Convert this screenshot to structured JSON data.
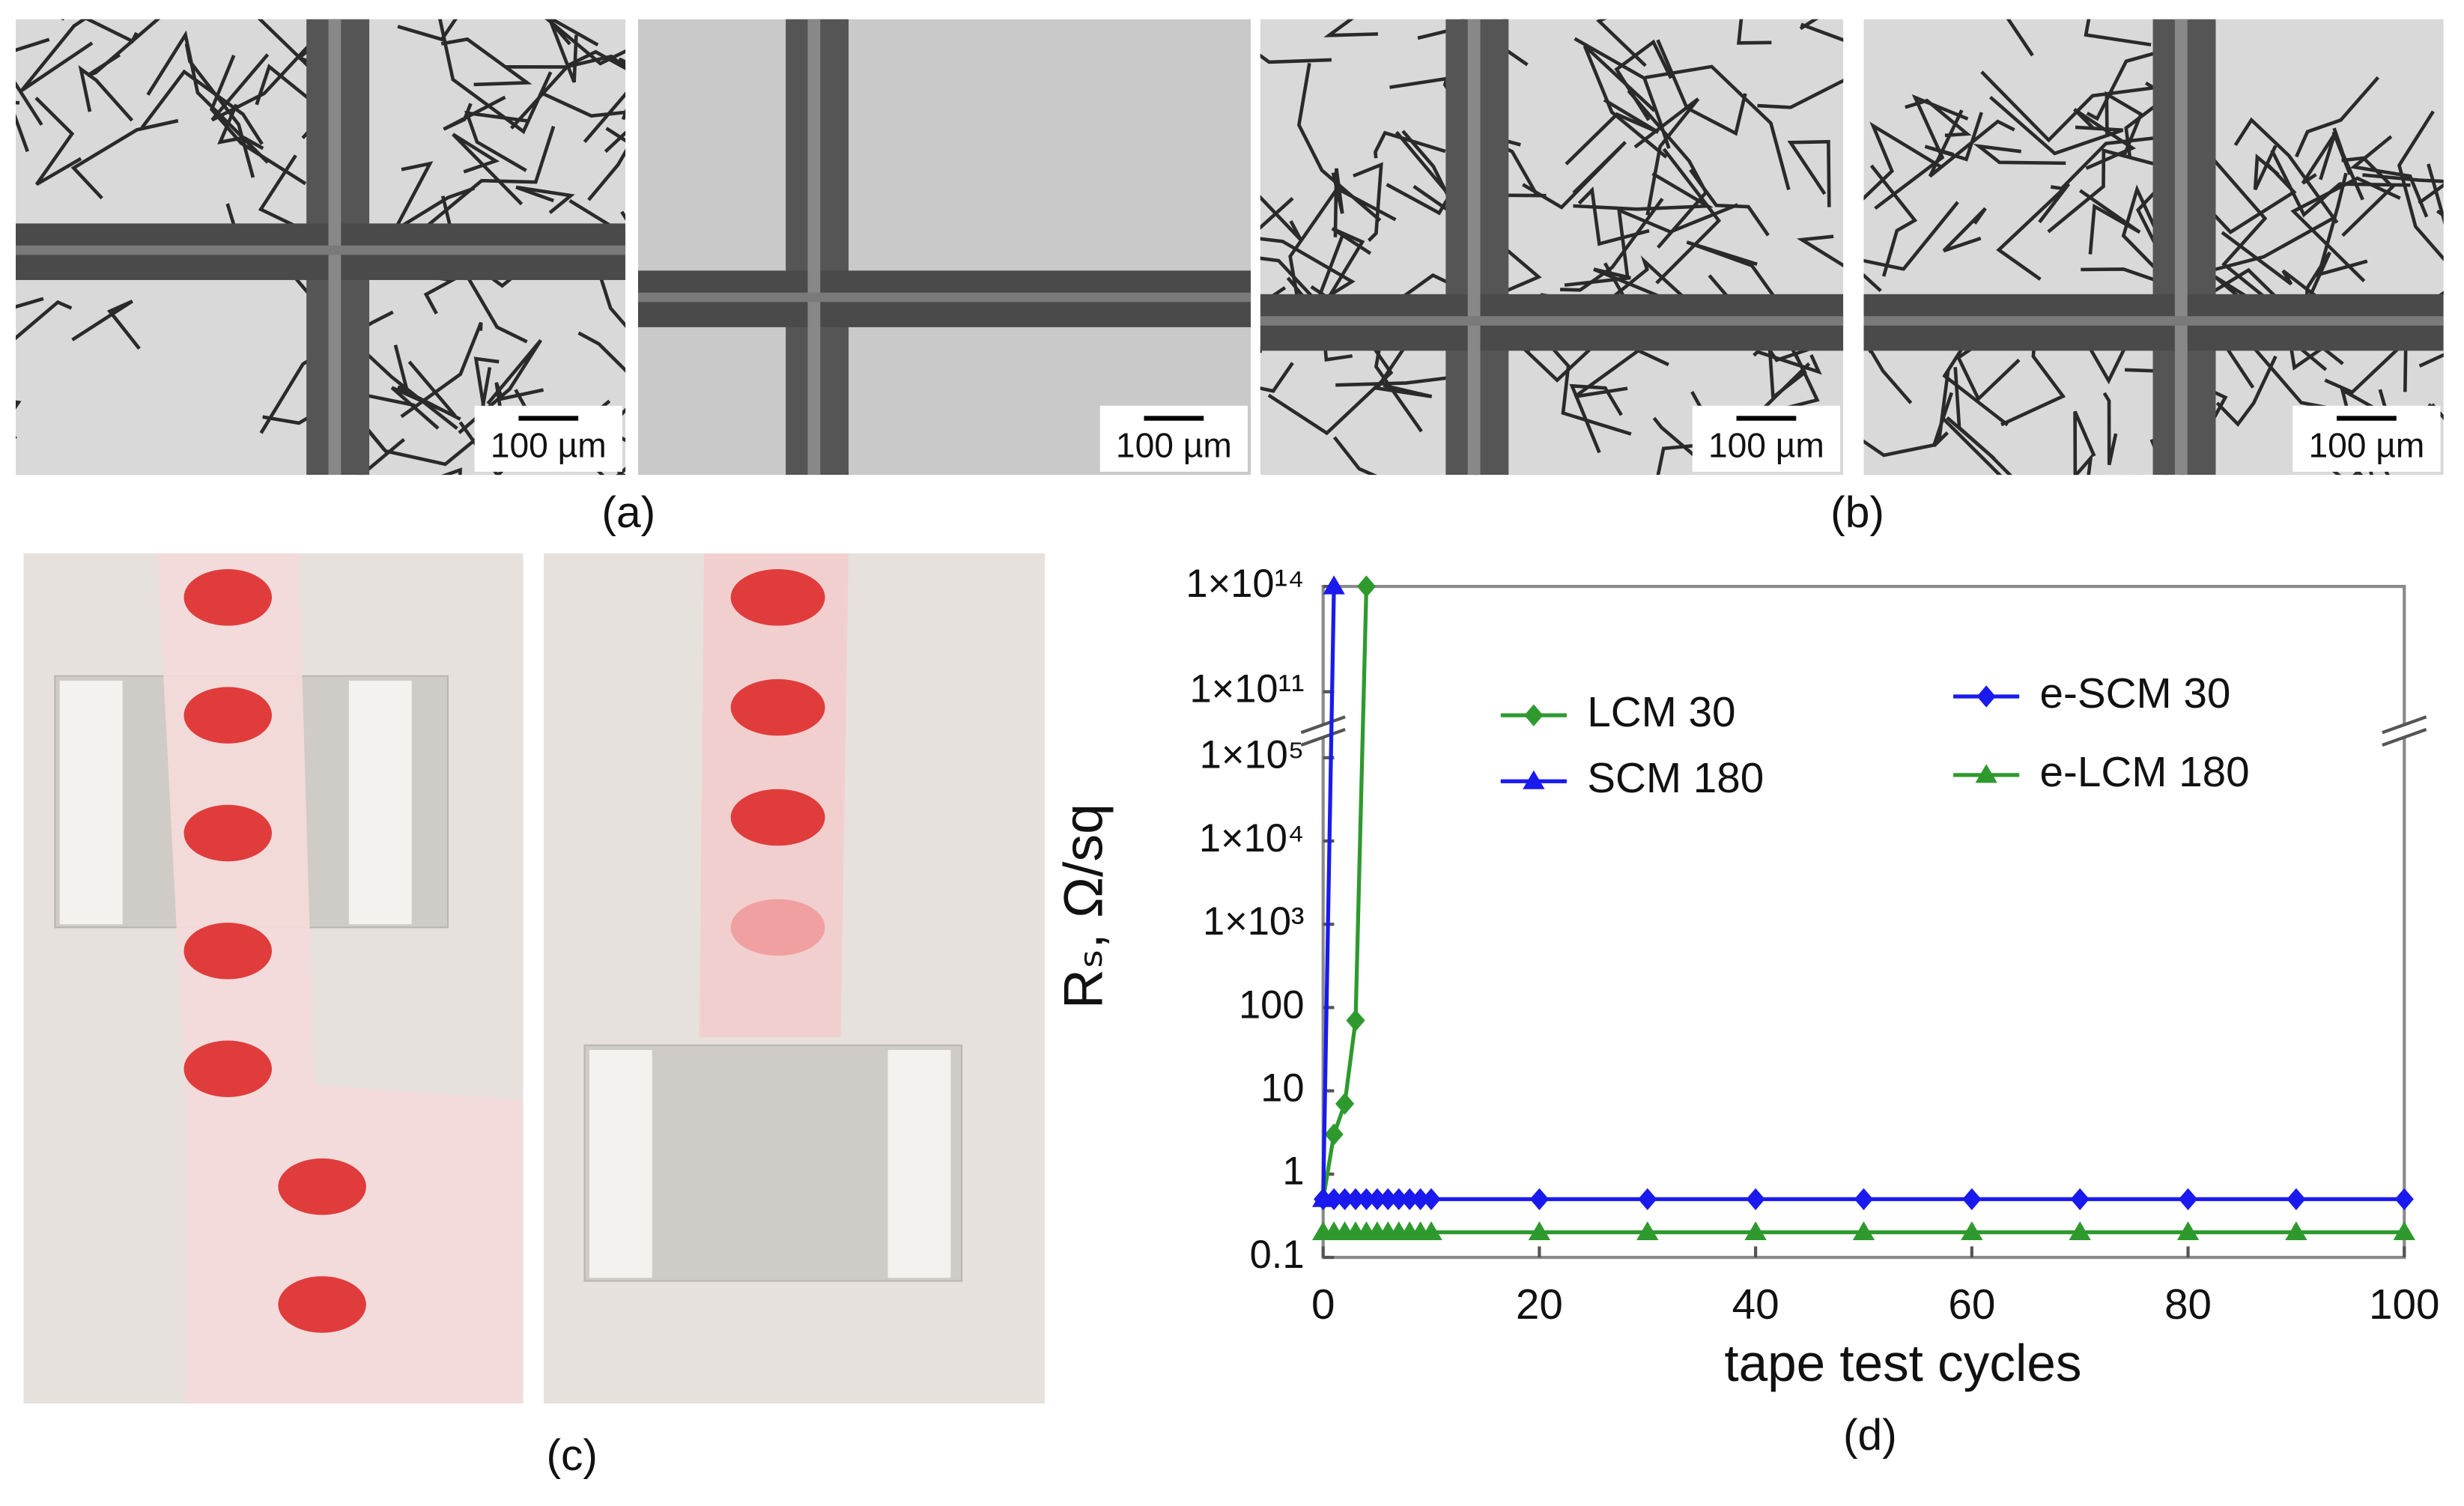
{
  "panels": {
    "a": "(a)",
    "b": "(b)",
    "c": "(c)",
    "d": "(d)"
  },
  "scalebars": [
    "100 µm",
    "100 µm",
    "100 µm",
    "100 µm"
  ],
  "chart_data": {
    "type": "line",
    "xlabel": "tape test cycles",
    "ylabel": "Rₛ, Ω/sq",
    "xlim": [
      0,
      100
    ],
    "xticks": [
      0,
      20,
      40,
      60,
      80,
      100
    ],
    "ylim": [
      0.1,
      100000000000000
    ],
    "ylog": true,
    "ybreak": [
      100000,
      100000000000
    ],
    "yticks": [
      0.1,
      1,
      10,
      100,
      {
        "value": 1000,
        "label": "1×10³"
      },
      {
        "value": 10000,
        "label": "1×10⁴"
      },
      {
        "value": 100000,
        "label": "1×10⁵"
      },
      {
        "value": 100000000000,
        "label": "1×10¹¹"
      },
      {
        "value": 100000000000000,
        "label": "1×10¹⁴"
      }
    ],
    "grid": false,
    "series": [
      {
        "name": "LCM 30",
        "color": "#2e9a2e",
        "marker": "diamond",
        "x": [
          0,
          1,
          2,
          3,
          4
        ],
        "values": [
          0.5,
          3,
          7,
          70,
          100000000000000
        ]
      },
      {
        "name": "SCM 180",
        "color": "#1a1aee",
        "marker": "triangle",
        "x": [
          0,
          1
        ],
        "values": [
          0.5,
          100000000000000
        ]
      },
      {
        "name": "e-SCM 30",
        "color": "#1a1aee",
        "marker": "diamond",
        "x": [
          0,
          1,
          2,
          3,
          4,
          5,
          6,
          7,
          8,
          9,
          10,
          20,
          30,
          40,
          50,
          60,
          70,
          80,
          90,
          100
        ],
        "values": [
          0.5,
          0.5,
          0.5,
          0.5,
          0.5,
          0.5,
          0.5,
          0.5,
          0.5,
          0.5,
          0.5,
          0.5,
          0.5,
          0.5,
          0.5,
          0.5,
          0.5,
          0.5,
          0.5,
          0.5
        ]
      },
      {
        "name": "e-LCM 180",
        "color": "#2e9a2e",
        "marker": "triangle",
        "x": [
          0,
          1,
          2,
          3,
          4,
          5,
          6,
          7,
          8,
          9,
          10,
          20,
          30,
          40,
          50,
          60,
          70,
          80,
          90,
          100
        ],
        "values": [
          0.2,
          0.2,
          0.2,
          0.2,
          0.2,
          0.2,
          0.2,
          0.2,
          0.2,
          0.2,
          0.2,
          0.2,
          0.2,
          0.2,
          0.2,
          0.2,
          0.2,
          0.2,
          0.2,
          0.2
        ]
      }
    ]
  }
}
